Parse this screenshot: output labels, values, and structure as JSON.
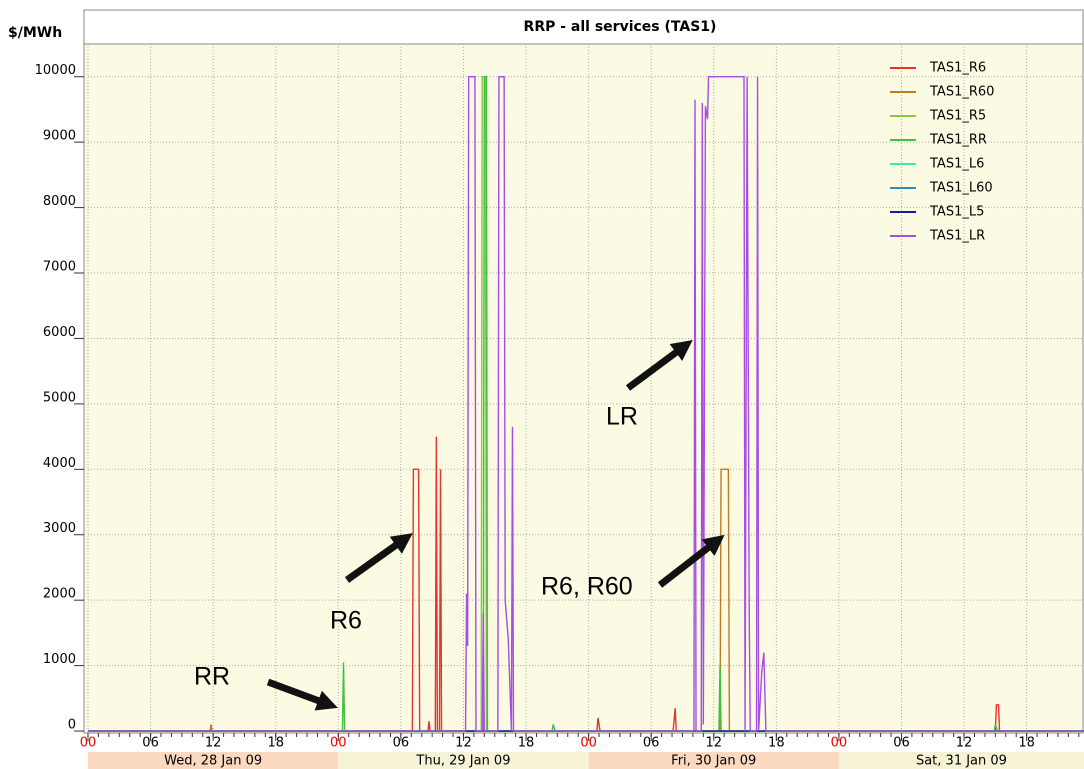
{
  "chart_data": {
    "type": "line",
    "title": "RRP - all services (TAS1)",
    "y_label": "$/MWh",
    "xlim": [
      0,
      95.5
    ],
    "ylim": [
      -30,
      10500
    ],
    "xticks": [
      {
        "value": 0,
        "label": "00"
      },
      {
        "value": 6,
        "label": "06"
      },
      12,
      18,
      {
        "value": 24,
        "label": "00"
      },
      {
        "value": 30,
        "label": "06"
      },
      {
        "value": 36,
        "label": "12"
      },
      {
        "value": 42,
        "label": "18"
      },
      {
        "value": 48,
        "label": "00"
      },
      {
        "value": 54,
        "label": "06"
      },
      {
        "value": 60,
        "label": "12"
      },
      {
        "value": 66,
        "label": "18"
      },
      {
        "value": 72,
        "label": "00"
      },
      {
        "value": 78,
        "label": "06"
      },
      {
        "value": 84,
        "label": "12"
      },
      {
        "value": 90,
        "label": "18"
      }
    ],
    "yticks": [
      0,
      1000,
      2000,
      3000,
      4000,
      5000,
      6000,
      7000,
      8000,
      9000,
      10000
    ],
    "grid": true,
    "legend": "upper right",
    "days": [
      "Wed, 28 Jan 09",
      "Thu, 29 Jan 09",
      "Fri, 30 Jan 09",
      "Sat, 31 Jan 09"
    ],
    "series": [
      {
        "name": "TAS1_R6",
        "color": "#e8332a",
        "x": [
          0,
          31.1,
          31.2,
          31.7,
          31.8,
          32.6,
          32.7,
          32.8,
          33.3,
          33.4,
          33.5,
          33.7,
          33.8,
          33.9,
          48.8,
          48.9,
          49.1,
          56.1,
          56.3,
          56.4,
          87.0,
          87.1,
          87.3,
          87.4,
          95.5
        ],
        "values": [
          0,
          0,
          4000,
          4000,
          0,
          0,
          150,
          0,
          0,
          4500,
          0,
          0,
          4000,
          0,
          0,
          200,
          0,
          0,
          350,
          0,
          0,
          400,
          400,
          0,
          0
        ]
      },
      {
        "name": "TAS1_R60",
        "color": "#c07a1e",
        "x": [
          0,
          11.7,
          11.8,
          11.9,
          60.6,
          60.7,
          61.4,
          61.5,
          95.5
        ],
        "values": [
          0,
          0,
          100,
          0,
          0,
          4000,
          4000,
          0,
          0
        ]
      },
      {
        "name": "TAS1_R5",
        "color": "#8cc63f",
        "x": [
          0,
          37.7,
          37.8,
          38.1,
          38.2,
          95.5
        ],
        "values": [
          0,
          0,
          10000,
          10000,
          0,
          0
        ]
      },
      {
        "name": "TAS1_RR",
        "color": "#3fbf3f",
        "x": [
          0,
          24.4,
          24.5,
          24.6,
          37.9,
          38.0,
          38.2,
          38.3,
          44.5,
          44.6,
          44.8,
          60.5,
          60.6,
          60.7,
          86.9,
          87.0,
          87.2,
          95.5
        ],
        "values": [
          0,
          0,
          1050,
          0,
          0,
          10000,
          10000,
          0,
          0,
          100,
          0,
          0,
          1000,
          0,
          0,
          100,
          0,
          0
        ]
      },
      {
        "name": "TAS1_L6",
        "color": "#3ee8b0",
        "x": [
          0,
          95.5
        ],
        "values": [
          0,
          0
        ]
      },
      {
        "name": "TAS1_L60",
        "color": "#2a8fbf",
        "x": [
          0,
          95.5
        ],
        "values": [
          0,
          0
        ]
      },
      {
        "name": "TAS1_L5",
        "color": "#1a1a9c",
        "x": [
          0,
          95.5
        ],
        "values": [
          0,
          0
        ]
      },
      {
        "name": "TAS1_LR",
        "color": "#a64ee0",
        "x": [
          0,
          36.2,
          36.3,
          36.4,
          36.5,
          37.1,
          37.2,
          37.8,
          37.9,
          38.0,
          39.3,
          39.4,
          39.9,
          40.0,
          40.3,
          40.6,
          40.7,
          40.8,
          58.1,
          58.2,
          58.3,
          58.8,
          58.9,
          59.0,
          59.2,
          59.4,
          59.5,
          62.9,
          63.0,
          63.2,
          63.4,
          63.5,
          64.1,
          64.2,
          64.3,
          64.6,
          64.8,
          65.0,
          95.5
        ],
        "values": [
          0,
          0,
          2100,
          1300,
          10000,
          10000,
          0,
          0,
          1800,
          0,
          0,
          10000,
          10000,
          2000,
          1400,
          0,
          4650,
          0,
          0,
          9650,
          0,
          0,
          9600,
          100,
          9550,
          9350,
          10000,
          10000,
          0,
          10000,
          1800,
          0,
          0,
          10000,
          0,
          900,
          1200,
          0,
          0
        ]
      }
    ],
    "annotations": [
      "RR",
      "R6",
      "R6, R60",
      "LR"
    ]
  }
}
